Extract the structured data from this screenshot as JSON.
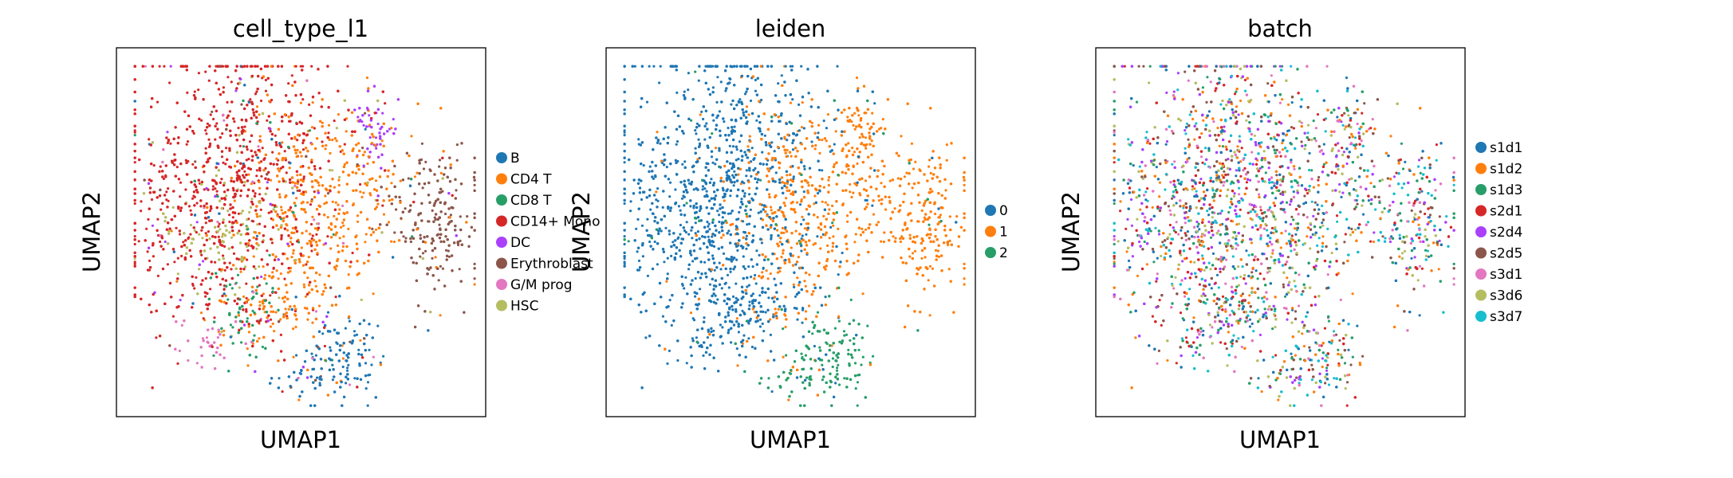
{
  "chart_data": [
    {
      "type": "scatter",
      "title": "cell_type_l1",
      "xlabel": "UMAP1",
      "ylabel": "UMAP2",
      "grid": false,
      "legend_position": "right",
      "ticks": false,
      "series": [
        {
          "name": "B",
          "color": "#1f77b4"
        },
        {
          "name": "CD4 T",
          "color": "#ff7f0e"
        },
        {
          "name": "CD8 T",
          "color": "#279e68"
        },
        {
          "name": "CD14+ Mono",
          "color": "#d62728"
        },
        {
          "name": "DC",
          "color": "#aa40fc"
        },
        {
          "name": "Erythroblast",
          "color": "#8c564b"
        },
        {
          "name": "G/M prog",
          "color": "#e377c2"
        },
        {
          "name": "HSC",
          "color": "#b5bd61"
        }
      ]
    },
    {
      "type": "scatter",
      "title": "leiden",
      "xlabel": "UMAP1",
      "ylabel": "UMAP2",
      "grid": false,
      "legend_position": "right",
      "ticks": false,
      "series": [
        {
          "name": "0",
          "color": "#1f77b4"
        },
        {
          "name": "1",
          "color": "#ff7f0e"
        },
        {
          "name": "2",
          "color": "#279e68"
        }
      ]
    },
    {
      "type": "scatter",
      "title": "batch",
      "xlabel": "UMAP1",
      "ylabel": "UMAP2",
      "grid": false,
      "legend_position": "right",
      "ticks": false,
      "series": [
        {
          "name": "s1d1",
          "color": "#1f77b4"
        },
        {
          "name": "s1d2",
          "color": "#ff7f0e"
        },
        {
          "name": "s1d3",
          "color": "#279e68"
        },
        {
          "name": "s2d1",
          "color": "#d62728"
        },
        {
          "name": "s2d4",
          "color": "#aa40fc"
        },
        {
          "name": "s2d5",
          "color": "#8c564b"
        },
        {
          "name": "s3d1",
          "color": "#e377c2"
        },
        {
          "name": "s3d6",
          "color": "#b5bd61"
        },
        {
          "name": "s3d7",
          "color": "#17becf"
        }
      ]
    }
  ]
}
